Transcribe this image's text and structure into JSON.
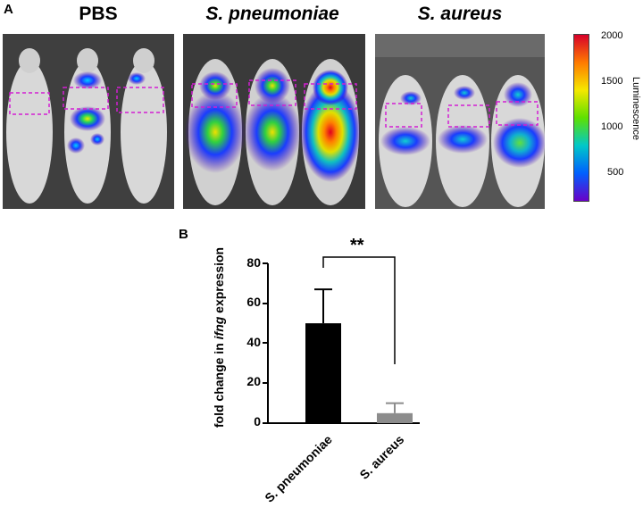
{
  "panel_a": {
    "letter": "A",
    "groups": [
      {
        "title": "PBS",
        "italic": false
      },
      {
        "title": "S. pneumoniae",
        "italic": true
      },
      {
        "title": "S. aureus",
        "italic": true
      }
    ],
    "colorbar": {
      "title": "Luminescence",
      "ticks": [
        "2000",
        "1500",
        "1000",
        "500"
      ],
      "colors": [
        "#d7002a",
        "#ff7a00",
        "#f5e800",
        "#5ee000",
        "#00c8c8",
        "#0060ff",
        "#6a00c8"
      ]
    },
    "roi_color": "#d21ed2"
  },
  "panel_b": {
    "letter": "B",
    "significance": "**"
  },
  "chart_data": {
    "type": "bar",
    "categories": [
      "S. pneumoniae",
      "S. aureus"
    ],
    "values": [
      50,
      5
    ],
    "errors": [
      17,
      5
    ],
    "colors": [
      "#000000",
      "#8c8c8c"
    ],
    "ylabel_pre": "fold change in ",
    "ylabel_it": "ifng",
    "ylabel_post": " expression",
    "yticks": [
      "0",
      "20",
      "40",
      "60",
      "80"
    ],
    "ylim": [
      0,
      80
    ]
  }
}
